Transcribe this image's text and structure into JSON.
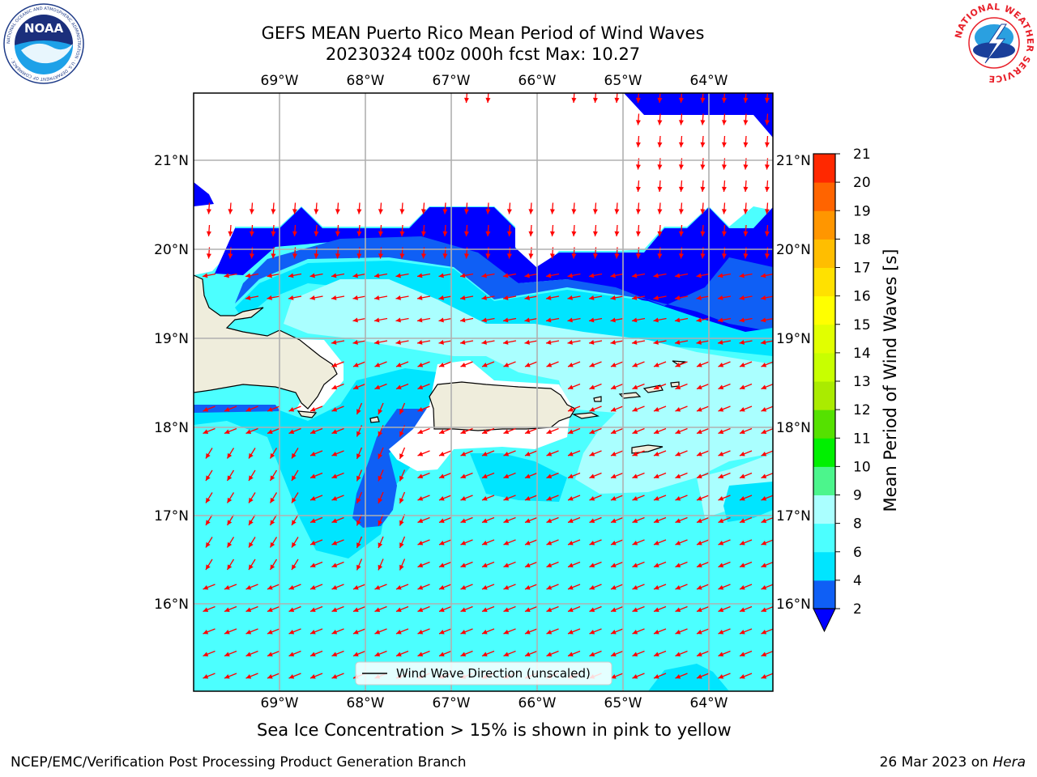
{
  "title": {
    "line1": "GEFS MEAN Puerto Rico Mean Period of Wind Waves",
    "line2": "20230324 t00z 000h fcst   Max: 10.27"
  },
  "map": {
    "lon_labels": [
      "69°W",
      "68°W",
      "67°W",
      "66°W",
      "65°W",
      "64°W"
    ],
    "lat_labels": [
      "21°N",
      "20°N",
      "19°N",
      "18°N",
      "17°N",
      "16°N"
    ],
    "legend_label": "Wind Wave Direction (unscaled)",
    "arrow_color": "#ff0000",
    "land_color": "#efeddc",
    "ocean_default_color": "#4dffff"
  },
  "colorbar": {
    "label": "Mean Period of Wind Waves [s]",
    "ticks": [
      "2",
      "4",
      "6",
      "8",
      "9",
      "10",
      "11",
      "12",
      "13",
      "14",
      "15",
      "16",
      "17",
      "18",
      "19",
      "20",
      "21"
    ],
    "colors": [
      "#0f5ff5",
      "#00e5ff",
      "#4cffff",
      "#aaffff",
      "#4cf58c",
      "#00f000",
      "#55e100",
      "#aaeb00",
      "#c8ff00",
      "#e1ff00",
      "#ffff00",
      "#ffe100",
      "#ffbe00",
      "#ff9600",
      "#ff6400",
      "#ff2800"
    ],
    "under_color": "#0000ff"
  },
  "notes": {
    "sea_ice": "Sea Ice Concentration > 15% is shown in pink to yellow",
    "footer_left": "NCEP/EMC/Verification Post Processing Product Generation Branch",
    "footer_right_prefix": "26 Mar 2023 on ",
    "footer_right_machine": "Hera"
  },
  "logos": {
    "noaa": "NOAA",
    "noaa_ring": "NATIONAL OCEANIC AND ATMOSPHERIC ADMINISTRATION · U.S. DEPARTMENT OF COMMERCE ·",
    "nws_ring": "NATIONAL WEATHER SERVICE"
  }
}
